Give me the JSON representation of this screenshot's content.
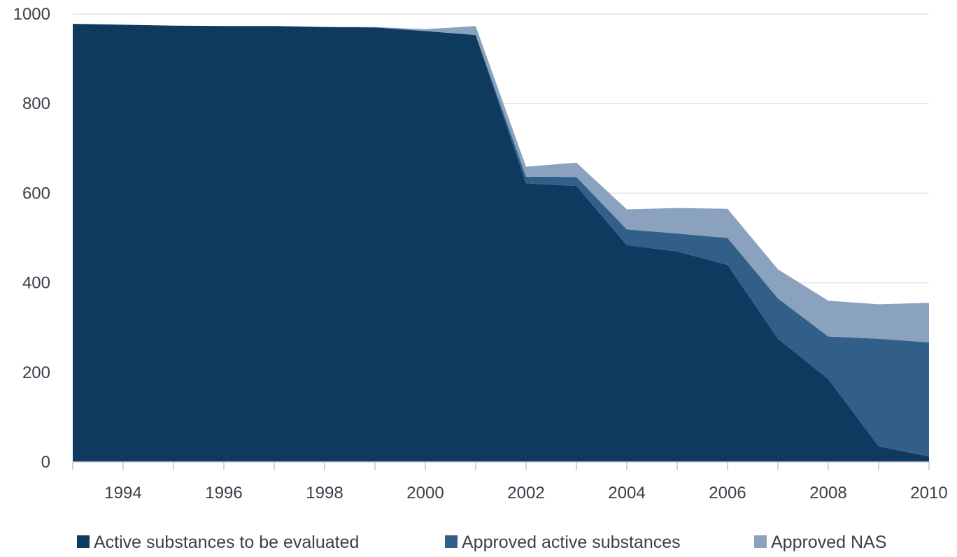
{
  "chart_data": {
    "type": "area",
    "stacked": true,
    "x": [
      1993,
      1994,
      1995,
      1996,
      1997,
      1998,
      1999,
      2000,
      2001,
      2002,
      2003,
      2004,
      2005,
      2006,
      2007,
      2008,
      2009,
      2010
    ],
    "x_tick_labels": [
      "1994",
      "1996",
      "1998",
      "2000",
      "2002",
      "2004",
      "2006",
      "2008",
      "2010"
    ],
    "y_tick_labels": [
      "0",
      "200",
      "400",
      "600",
      "800",
      "1000"
    ],
    "ylim": [
      0,
      1000
    ],
    "xlim": [
      1993,
      2010
    ],
    "grid": "horizontal",
    "legend_position": "bottom",
    "series": [
      {
        "name": "Active substances to be evaluated",
        "color": "#0f3a60",
        "values": [
          978,
          976,
          974,
          973,
          973,
          971,
          970,
          962,
          953,
          622,
          616,
          484,
          470,
          440,
          275,
          185,
          35,
          12
        ]
      },
      {
        "name": "Approved active substances",
        "color": "#325f88",
        "values": [
          0,
          0,
          0,
          0,
          0,
          0,
          0,
          0,
          0,
          15,
          20,
          35,
          40,
          60,
          90,
          95,
          240,
          255
        ]
      },
      {
        "name": "Approved NAS",
        "color": "#8aa2bd",
        "values": [
          0,
          0,
          0,
          0,
          0,
          0,
          1,
          4,
          20,
          22,
          32,
          45,
          57,
          65,
          65,
          80,
          77,
          88
        ]
      }
    ]
  }
}
